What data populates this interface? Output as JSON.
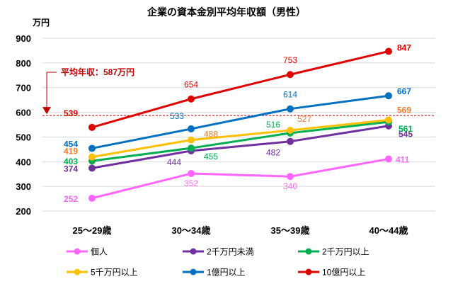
{
  "chart_data": {
    "type": "line",
    "title": "企業の資本金別平均年収額（男性）",
    "ylabel": "万円",
    "xlabel": "",
    "ylim": [
      200,
      900
    ],
    "yticks": [
      200,
      300,
      400,
      500,
      600,
      700,
      800,
      900
    ],
    "categories": [
      "25～29歳",
      "30～34歳",
      "35～39歳",
      "40～44歳"
    ],
    "series": [
      {
        "name": "個人",
        "color": "#ff66ff",
        "values": [
          252,
          352,
          340,
          411
        ],
        "labels": [
          "252",
          "352",
          "340",
          "411"
        ]
      },
      {
        "name": "2千万円未満",
        "color": "#7030a0",
        "values": [
          374,
          444,
          482,
          545
        ],
        "labels": [
          "374",
          "444",
          "482",
          "545"
        ]
      },
      {
        "name": "2千万円以上",
        "color": "#00b050",
        "values": [
          403,
          455,
          516,
          561
        ],
        "labels": [
          "403",
          "455",
          "516",
          "561"
        ]
      },
      {
        "name": "5千万円以上",
        "color": "#ffc000",
        "values": [
          419,
          488,
          527,
          569
        ],
        "labels": [
          "419",
          "488",
          "527",
          "569"
        ],
        "label_color": "#ed7d31"
      },
      {
        "name": "1億円以上",
        "color": "#0070c0",
        "values": [
          454,
          533,
          614,
          667
        ],
        "labels": [
          "454",
          "533",
          "614",
          "667"
        ]
      },
      {
        "name": "10億円以上",
        "color": "#e00000",
        "values": [
          539,
          654,
          753,
          847
        ],
        "labels": [
          "539",
          "654",
          "753",
          "847"
        ]
      }
    ],
    "reference_line": {
      "value": 587,
      "label": "平均年収：587万円",
      "color": "#c00000"
    },
    "grid": true,
    "legend": "bottom"
  }
}
